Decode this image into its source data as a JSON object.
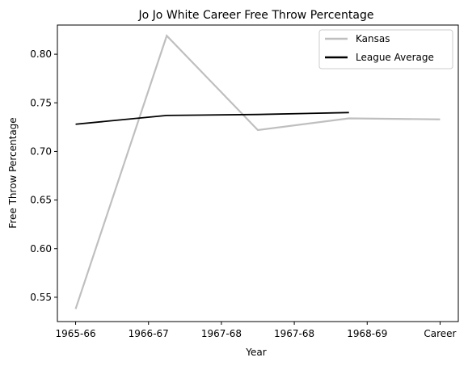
{
  "chart_data": {
    "type": "line",
    "title": "Jo Jo White Career Free Throw Percentage",
    "xlabel": "Year",
    "ylabel": "Free Throw Percentage",
    "categories": [
      "1965-66",
      "1966-67",
      "1967-68",
      "1967-68",
      "1968-69",
      "Career"
    ],
    "ylim": [
      0.525,
      0.83
    ],
    "yticks": [
      0.55,
      0.6,
      0.65,
      0.7,
      0.75,
      0.8
    ],
    "ytick_labels": [
      "0.55",
      "0.60",
      "0.65",
      "0.70",
      "0.75",
      "0.80"
    ],
    "grid": false,
    "legend_position": "top-right",
    "series": [
      {
        "name": "Kansas",
        "color": "#bfbfbf",
        "x": [
          0,
          1.25,
          2.5,
          3.75,
          5
        ],
        "values": [
          0.538,
          0.819,
          0.722,
          0.734,
          0.733
        ]
      },
      {
        "name": "League Average",
        "color": "#000000",
        "x": [
          0,
          1.25,
          2.5,
          3.75
        ],
        "values": [
          0.728,
          0.737,
          0.738,
          0.74
        ]
      }
    ]
  }
}
